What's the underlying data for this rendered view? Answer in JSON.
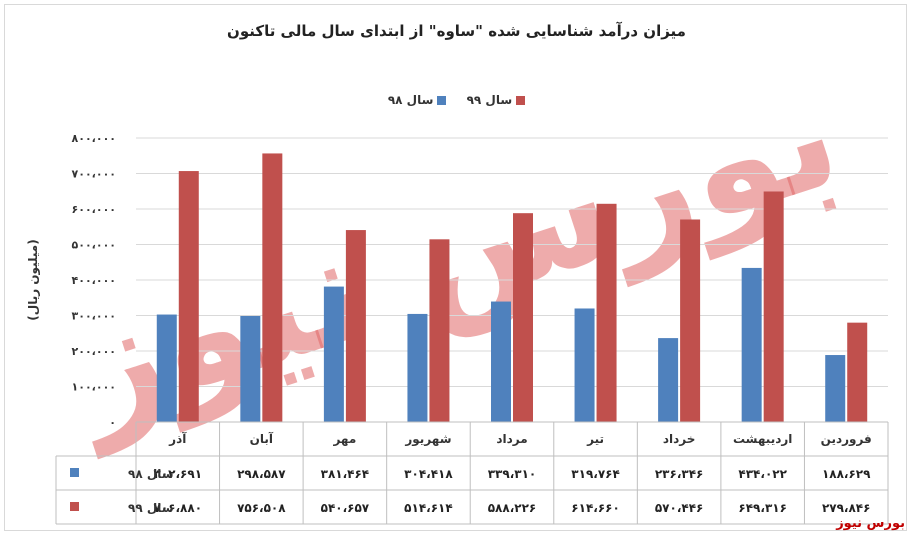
{
  "chart_data": {
    "type": "bar",
    "title": "میزان درآمد شناسایی شده \"ساوه\" از ابتدای سال مالی تاکنون",
    "ylabel": "(میلیون ریال)",
    "ylim": [
      0,
      800000
    ],
    "yticks": [
      0,
      100000,
      200000,
      300000,
      400000,
      500000,
      600000,
      700000,
      800000
    ],
    "ytick_labels": [
      "۰",
      "۱۰۰،۰۰۰",
      "۲۰۰،۰۰۰",
      "۳۰۰،۰۰۰",
      "۴۰۰،۰۰۰",
      "۵۰۰،۰۰۰",
      "۶۰۰،۰۰۰",
      "۷۰۰،۰۰۰",
      "۸۰۰،۰۰۰"
    ],
    "grid": true,
    "legend_position": "top",
    "categories": [
      "فروردین",
      "اردیبهشت",
      "خرداد",
      "تیر",
      "مرداد",
      "شهریور",
      "مهر",
      "آبان",
      "آذر"
    ],
    "series": [
      {
        "name": "سال ۹۸",
        "color": "#4f81bd",
        "values": [
          188629,
          434022,
          236346,
          319764,
          339310,
          304418,
          381464,
          298587,
          302691
        ],
        "labels": [
          "۱۸۸،۶۲۹",
          "۴۳۴،۰۲۲",
          "۲۳۶،۳۴۶",
          "۳۱۹،۷۶۴",
          "۳۳۹،۳۱۰",
          "۳۰۴،۴۱۸",
          "۳۸۱،۴۶۴",
          "۲۹۸،۵۸۷",
          "۳۰۲،۶۹۱"
        ]
      },
      {
        "name": "سال ۹۹",
        "color": "#c0504d",
        "values": [
          279846,
          649316,
          570446,
          614660,
          588226,
          514614,
          540657,
          756508,
          706880
        ],
        "labels": [
          "۲۷۹،۸۴۶",
          "۶۴۹،۳۱۶",
          "۵۷۰،۴۴۶",
          "۶۱۴،۶۶۰",
          "۵۸۸،۲۲۶",
          "۵۱۴،۶۱۴",
          "۵۴۰،۶۵۷",
          "۷۵۶،۵۰۸",
          "۷۰۶،۸۸۰"
        ]
      }
    ]
  },
  "watermark": {
    "text": "بورس نیوز",
    "color": "#e06666"
  },
  "logo": {
    "text": "بورس نیوز"
  }
}
